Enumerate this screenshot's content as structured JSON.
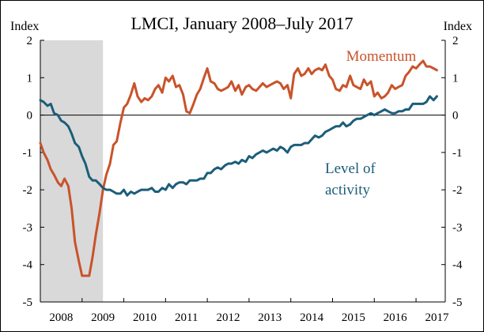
{
  "chart_data": {
    "type": "line",
    "title": "LMCI, January 2008–July 2017",
    "y_unit_left": "Index",
    "y_unit_right": "Index",
    "ylim": [
      -5,
      2
    ],
    "y_ticks": [
      2,
      1,
      0,
      -1,
      -2,
      -3,
      -4,
      -5
    ],
    "y_tick_labels": [
      "2",
      "1",
      "0",
      "-1",
      "-2",
      "-3",
      "-4",
      "-5"
    ],
    "xlim": [
      2008.0,
      2017.7
    ],
    "x_ticks": [
      2008,
      2009,
      2010,
      2011,
      2012,
      2013,
      2014,
      2015,
      2016,
      2017
    ],
    "x_tick_labels": [
      "2008",
      "2009",
      "2010",
      "2011",
      "2012",
      "2013",
      "2014",
      "2015",
      "2016",
      "2017"
    ],
    "zero_line": true,
    "recession_shading": {
      "start": 2008.0,
      "end": 2009.5,
      "color": "#d9d9d9"
    },
    "series": [
      {
        "name": "Momentum",
        "color": "#c9532b",
        "x": [
          2008.0,
          2008.08,
          2008.17,
          2008.25,
          2008.33,
          2008.42,
          2008.5,
          2008.58,
          2008.67,
          2008.75,
          2008.83,
          2008.92,
          2009.0,
          2009.08,
          2009.17,
          2009.25,
          2009.33,
          2009.42,
          2009.5,
          2009.58,
          2009.67,
          2009.75,
          2009.83,
          2009.92,
          2010.0,
          2010.08,
          2010.17,
          2010.25,
          2010.33,
          2010.42,
          2010.5,
          2010.58,
          2010.67,
          2010.75,
          2010.83,
          2010.92,
          2011.0,
          2011.08,
          2011.17,
          2011.25,
          2011.33,
          2011.42,
          2011.5,
          2011.58,
          2011.67,
          2011.75,
          2011.83,
          2011.92,
          2012.0,
          2012.08,
          2012.17,
          2012.25,
          2012.33,
          2012.42,
          2012.5,
          2012.58,
          2012.67,
          2012.75,
          2012.83,
          2012.92,
          2013.0,
          2013.08,
          2013.17,
          2013.25,
          2013.33,
          2013.42,
          2013.5,
          2013.58,
          2013.67,
          2013.75,
          2013.83,
          2013.92,
          2014.0,
          2014.08,
          2014.17,
          2014.25,
          2014.33,
          2014.42,
          2014.5,
          2014.58,
          2014.67,
          2014.75,
          2014.83,
          2014.92,
          2015.0,
          2015.08,
          2015.17,
          2015.25,
          2015.33,
          2015.42,
          2015.5,
          2015.58,
          2015.67,
          2015.75,
          2015.83,
          2015.92,
          2016.0,
          2016.08,
          2016.17,
          2016.25,
          2016.33,
          2016.42,
          2016.5,
          2016.58,
          2016.67,
          2016.75,
          2016.83,
          2016.92,
          2017.0,
          2017.08,
          2017.17,
          2017.25,
          2017.33,
          2017.42,
          2017.5
        ],
        "values": [
          -0.75,
          -1.0,
          -1.2,
          -1.45,
          -1.6,
          -1.8,
          -1.9,
          -1.7,
          -1.9,
          -2.5,
          -3.4,
          -3.9,
          -4.3,
          -4.3,
          -4.3,
          -3.8,
          -3.2,
          -2.6,
          -2.0,
          -1.6,
          -1.3,
          -0.8,
          -0.7,
          -0.2,
          0.2,
          0.3,
          0.55,
          0.85,
          0.5,
          0.35,
          0.45,
          0.4,
          0.5,
          0.7,
          0.8,
          0.6,
          1.0,
          0.9,
          1.05,
          0.75,
          0.8,
          0.55,
          0.1,
          0.05,
          0.3,
          0.55,
          0.7,
          1.0,
          1.25,
          0.9,
          0.85,
          0.7,
          0.65,
          0.7,
          0.75,
          0.9,
          0.65,
          0.8,
          0.55,
          0.75,
          0.8,
          0.7,
          0.65,
          0.75,
          0.85,
          0.75,
          0.8,
          0.85,
          0.9,
          0.85,
          0.7,
          0.8,
          0.45,
          1.1,
          1.25,
          1.05,
          1.1,
          1.25,
          1.1,
          1.2,
          1.25,
          1.2,
          1.35,
          1.05,
          0.95,
          0.7,
          0.65,
          0.8,
          0.75,
          1.05,
          0.8,
          0.75,
          0.7,
          0.95,
          0.8,
          0.9,
          0.5,
          0.6,
          0.45,
          0.5,
          0.6,
          0.8,
          0.7,
          0.75,
          0.8,
          1.05,
          1.15,
          1.3,
          1.25,
          1.35,
          1.45,
          1.3,
          1.3,
          1.25,
          1.2
        ]
      },
      {
        "name": "Level of activity",
        "color": "#1b5e7a",
        "x": [
          2008.0,
          2008.08,
          2008.17,
          2008.25,
          2008.33,
          2008.42,
          2008.5,
          2008.58,
          2008.67,
          2008.75,
          2008.83,
          2008.92,
          2009.0,
          2009.08,
          2009.17,
          2009.25,
          2009.33,
          2009.42,
          2009.5,
          2009.58,
          2009.67,
          2009.75,
          2009.83,
          2009.92,
          2010.0,
          2010.08,
          2010.17,
          2010.25,
          2010.33,
          2010.42,
          2010.5,
          2010.58,
          2010.67,
          2010.75,
          2010.83,
          2010.92,
          2011.0,
          2011.08,
          2011.17,
          2011.25,
          2011.33,
          2011.42,
          2011.5,
          2011.58,
          2011.67,
          2011.75,
          2011.83,
          2011.92,
          2012.0,
          2012.08,
          2012.17,
          2012.25,
          2012.33,
          2012.42,
          2012.5,
          2012.58,
          2012.67,
          2012.75,
          2012.83,
          2012.92,
          2013.0,
          2013.08,
          2013.17,
          2013.25,
          2013.33,
          2013.42,
          2013.5,
          2013.58,
          2013.67,
          2013.75,
          2013.83,
          2013.92,
          2014.0,
          2014.08,
          2014.17,
          2014.25,
          2014.33,
          2014.42,
          2014.5,
          2014.58,
          2014.67,
          2014.75,
          2014.83,
          2014.92,
          2015.0,
          2015.08,
          2015.17,
          2015.25,
          2015.33,
          2015.42,
          2015.5,
          2015.58,
          2015.67,
          2015.75,
          2015.83,
          2015.92,
          2016.0,
          2016.08,
          2016.17,
          2016.25,
          2016.33,
          2016.42,
          2016.5,
          2016.58,
          2016.67,
          2016.75,
          2016.83,
          2016.92,
          2017.0,
          2017.08,
          2017.17,
          2017.25,
          2017.33,
          2017.42,
          2017.5
        ],
        "values": [
          0.4,
          0.35,
          0.25,
          0.3,
          0.05,
          0.0,
          -0.15,
          -0.2,
          -0.3,
          -0.5,
          -0.75,
          -0.85,
          -1.1,
          -1.3,
          -1.65,
          -1.75,
          -1.75,
          -1.85,
          -1.95,
          -2.0,
          -2.0,
          -2.05,
          -2.1,
          -2.1,
          -2.0,
          -2.15,
          -2.05,
          -2.1,
          -2.05,
          -2.0,
          -2.0,
          -2.0,
          -1.95,
          -2.05,
          -2.05,
          -1.95,
          -2.0,
          -1.85,
          -1.95,
          -1.85,
          -1.8,
          -1.8,
          -1.85,
          -1.75,
          -1.75,
          -1.75,
          -1.7,
          -1.7,
          -1.55,
          -1.55,
          -1.45,
          -1.4,
          -1.45,
          -1.35,
          -1.3,
          -1.3,
          -1.25,
          -1.3,
          -1.2,
          -1.25,
          -1.1,
          -1.15,
          -1.05,
          -1.0,
          -0.95,
          -1.0,
          -0.95,
          -0.9,
          -0.95,
          -0.85,
          -0.9,
          -1.0,
          -0.85,
          -0.8,
          -0.8,
          -0.8,
          -0.75,
          -0.75,
          -0.65,
          -0.55,
          -0.6,
          -0.55,
          -0.45,
          -0.4,
          -0.35,
          -0.3,
          -0.3,
          -0.2,
          -0.3,
          -0.25,
          -0.15,
          -0.1,
          -0.1,
          -0.05,
          0.0,
          0.05,
          0.0,
          0.05,
          0.1,
          0.15,
          0.1,
          0.05,
          0.05,
          0.1,
          0.1,
          0.15,
          0.15,
          0.3,
          0.3,
          0.3,
          0.3,
          0.35,
          0.5,
          0.4,
          0.5
        ]
      }
    ],
    "annotations": [
      {
        "text": "Momentum",
        "series": 0
      },
      {
        "text": "Level of",
        "series": 1
      },
      {
        "text": "activity",
        "series": 1
      }
    ]
  }
}
